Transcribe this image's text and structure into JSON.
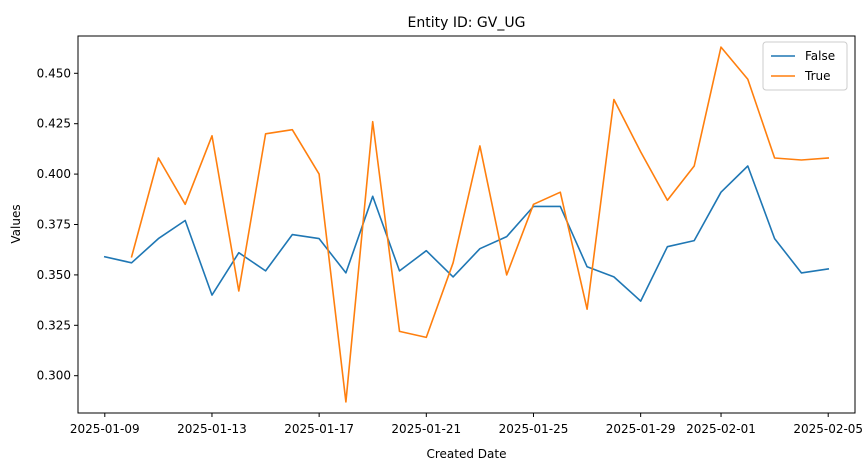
{
  "chart_data": {
    "type": "line",
    "title": "Entity ID: GV_UG",
    "xlabel": "Created Date",
    "ylabel": "Values",
    "x_ticks": [
      "2025-01-09",
      "2025-01-13",
      "2025-01-17",
      "2025-01-21",
      "2025-01-25",
      "2025-01-29",
      "2025-02-01",
      "2025-02-05"
    ],
    "y_ticks": [
      "0.300",
      "0.325",
      "0.350",
      "0.375",
      "0.400",
      "0.425",
      "0.450"
    ],
    "ylim": [
      0.2815,
      0.4685
    ],
    "xlim": [
      "2025-01-08",
      "2025-02-06"
    ],
    "grid": false,
    "legend_position": "top-right",
    "series": [
      {
        "name": "False",
        "color": "#1f77b4",
        "x": [
          "2025-01-09",
          "2025-01-10",
          "2025-01-11",
          "2025-01-12",
          "2025-01-13",
          "2025-01-14",
          "2025-01-15",
          "2025-01-16",
          "2025-01-17",
          "2025-01-18",
          "2025-01-19",
          "2025-01-20",
          "2025-01-21",
          "2025-01-22",
          "2025-01-23",
          "2025-01-24",
          "2025-01-25",
          "2025-01-26",
          "2025-01-27",
          "2025-01-28",
          "2025-01-29",
          "2025-01-30",
          "2025-01-31",
          "2025-02-01",
          "2025-02-02",
          "2025-02-03",
          "2025-02-04",
          "2025-02-05"
        ],
        "values": [
          0.359,
          0.356,
          0.368,
          0.377,
          0.34,
          0.361,
          0.352,
          0.37,
          0.368,
          0.351,
          0.389,
          0.352,
          0.362,
          0.349,
          0.363,
          0.369,
          0.384,
          0.384,
          0.354,
          0.349,
          0.337,
          0.364,
          0.367,
          0.391,
          0.404,
          0.368,
          0.351,
          0.353
        ]
      },
      {
        "name": "True",
        "color": "#ff7f0e",
        "x": [
          "2025-01-10",
          "2025-01-11",
          "2025-01-12",
          "2025-01-13",
          "2025-01-14",
          "2025-01-15",
          "2025-01-16",
          "2025-01-17",
          "2025-01-18",
          "2025-01-19",
          "2025-01-20",
          "2025-01-21",
          "2025-01-22",
          "2025-01-23",
          "2025-01-24",
          "2025-01-25",
          "2025-01-26",
          "2025-01-27",
          "2025-01-28",
          "2025-01-29",
          "2025-01-30",
          "2025-01-31",
          "2025-02-01",
          "2025-02-02",
          "2025-02-03",
          "2025-02-04",
          "2025-02-05"
        ],
        "values": [
          0.359,
          0.408,
          0.385,
          0.419,
          0.342,
          0.42,
          0.422,
          0.4,
          0.287,
          0.426,
          0.322,
          0.319,
          0.356,
          0.414,
          0.35,
          0.385,
          0.391,
          0.333,
          0.437,
          0.411,
          0.387,
          0.404,
          0.463,
          0.447,
          0.408,
          0.407,
          0.408
        ]
      }
    ]
  }
}
